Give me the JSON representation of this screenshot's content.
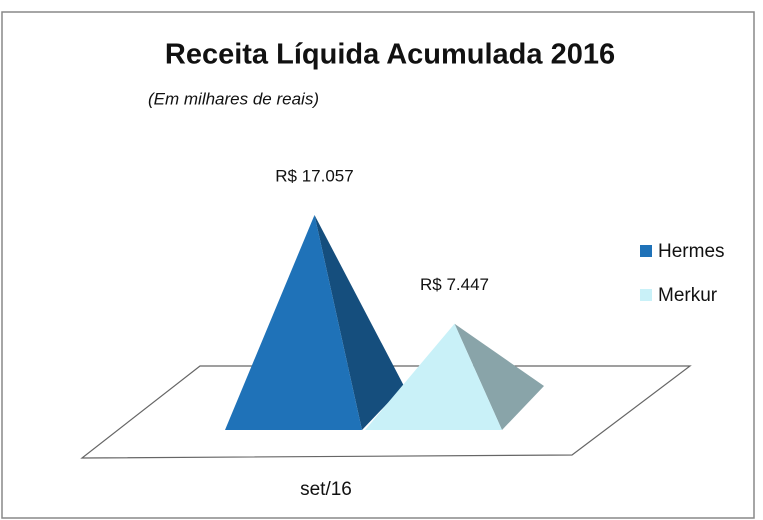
{
  "chart_data": {
    "type": "pyramid",
    "title": "Receita Líquida Acumulada 2016",
    "subtitle": "(Em milhares de reais)",
    "categories": [
      "set/16"
    ],
    "series": [
      {
        "name": "Hermes",
        "color": "#1f72b8",
        "values": [
          17057
        ],
        "value_labels": [
          "R$ 17.057"
        ]
      },
      {
        "name": "Merkur",
        "color": "#c9f1f8",
        "values": [
          7447
        ],
        "value_labels": [
          "R$ 7.447"
        ]
      }
    ],
    "legend": "right"
  }
}
